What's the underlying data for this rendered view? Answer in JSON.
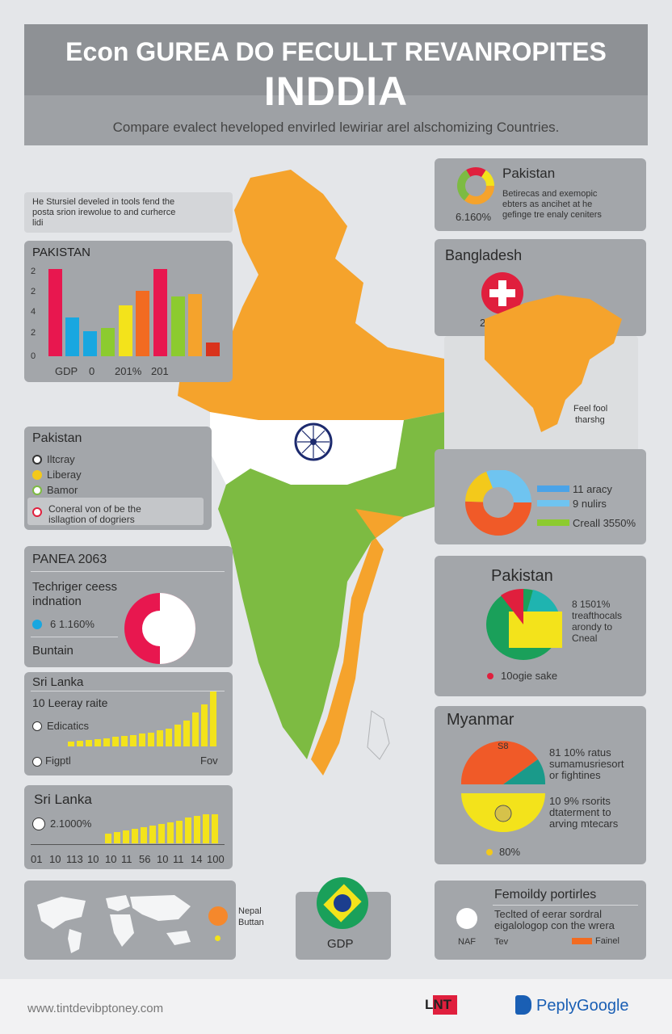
{
  "header": {
    "title": "Econ GUREA DO FECULLT REVANROPITES",
    "subtitle": "INDDIA",
    "tagline": "Compare evalect heveloped envirled lewiriar arel alschomizing Countries."
  },
  "left_note": {
    "text_line1": "He Stursiel develed in tools fend the",
    "text_line2": "posta srion irewolue to and curherce",
    "text_line3": "lidi"
  },
  "pakistan_bars": {
    "title": "PAKISTAN",
    "y_labels": [
      "2",
      "2",
      "4",
      "2",
      "0"
    ],
    "x_labels": [
      "GDP",
      "0",
      "201%",
      "201"
    ]
  },
  "pakistan_top": {
    "title": "Pakistan",
    "desc_line1": "Betirecas and exemopic",
    "desc_line2": "ebters as ancihet at he",
    "desc_line3": "gefinge tre enaly ceniters",
    "value": "6.160%"
  },
  "bangladesh": {
    "title": "Bangladesh",
    "value": "28150 %",
    "note_line1": "Feel fool",
    "note_line2": "tharshg"
  },
  "pakistan_legend": {
    "title": "Pakistan",
    "items": [
      "Iltcray",
      "Liberay",
      "Bamor"
    ],
    "note_line1": "Coneral von of be the",
    "note_line2": "isllagtion of dogriers"
  },
  "donut_right": {
    "legend1": "11 aracy",
    "legend2": "9 nulirs",
    "legend3": "Creall 3550%"
  },
  "panea": {
    "title": "PANEA 2063",
    "line1": "Techriger ceess",
    "line2": "indnation",
    "value": "6 1.160%",
    "label": "Buntain"
  },
  "pakistan_pie": {
    "title": "Pakistan",
    "line1": "8 1501%",
    "line2": "treafthocals",
    "line3": "arondy to",
    "line4": "Cneal",
    "legend": "10ogie sake"
  },
  "srilanka1": {
    "title": "Sri Lanka",
    "line1": "10 Leeray raite",
    "line2": "Edicatics",
    "left_label": "Figptl",
    "right_label": "Fov"
  },
  "myanmar": {
    "title": "Myanmar",
    "center": "S8",
    "line1": "81 10% ratus",
    "line2": "sumamusriesort",
    "line3": "or fightines",
    "line4": "10 9% rsorits",
    "line5": "dtaterment to",
    "line6": "arving mtecars",
    "legend": "80%"
  },
  "srilanka2": {
    "title": "Sri Lanka",
    "value": "2.1000%",
    "x_labels": [
      "01",
      "10",
      "113",
      "10",
      "10",
      "11",
      "56",
      "10",
      "11",
      "14",
      "100"
    ]
  },
  "bottom_map": {
    "label1": "Nepal",
    "label2": "Buttan"
  },
  "gdp_box": {
    "label": "GDP"
  },
  "family": {
    "title": "Femoildy portirles",
    "line1": "Teclted of eerar sordral",
    "line2": "eigalologop con the wrera",
    "label1": "NAF",
    "label2": "Tev",
    "label3": "Fainel"
  },
  "footer": {
    "url": "www.tintdevibptoney.com",
    "logo1": "LNT",
    "logo2": "PeplyGoogle"
  },
  "colors": {
    "orange": "#f5a32c",
    "green": "#7dbb42",
    "navy": "#1c2a6e",
    "red": "#e01f3d",
    "yellow": "#f3e31b"
  }
}
